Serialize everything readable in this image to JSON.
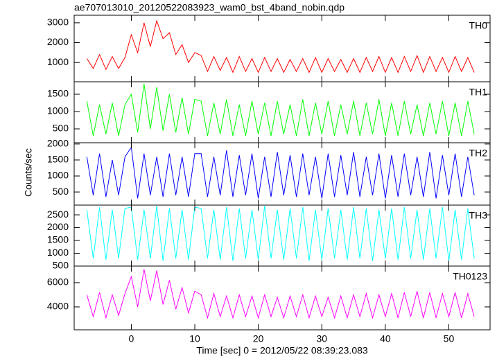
{
  "chart_data": {
    "type": "line",
    "title": "ae707013010_20120522083923_wam0_bst_4band_nobin.qdp",
    "xlabel": "Time [sec] 0 = 2012/05/22 08:39:23.083",
    "ylabel": "Counts/sec",
    "xlim": [
      -9,
      56.5
    ],
    "xticks": [
      0,
      10,
      20,
      30,
      40,
      50
    ],
    "x": [
      -7,
      -6,
      -5,
      -4,
      -3,
      -2,
      -1,
      0,
      1,
      2,
      3,
      4,
      5,
      6,
      7,
      8,
      9,
      10,
      11,
      12,
      13,
      14,
      15,
      16,
      17,
      18,
      19,
      20,
      21,
      22,
      23,
      24,
      25,
      26,
      27,
      28,
      29,
      30,
      31,
      32,
      33,
      34,
      35,
      36,
      37,
      38,
      39,
      40,
      41,
      42,
      43,
      44,
      45,
      46,
      47,
      48,
      49,
      50,
      51,
      52,
      53,
      54
    ],
    "series": [
      {
        "name": "TH0",
        "color": "#ff0000",
        "ylim": [
          30,
          3380
        ],
        "yticks": [
          1000,
          2000,
          3000
        ],
        "values": [
          1200,
          700,
          1400,
          650,
          1300,
          700,
          1250,
          2400,
          1500,
          3000,
          1800,
          3100,
          2200,
          2500,
          1400,
          1900,
          1000,
          1500,
          1350,
          550,
          1300,
          600,
          1250,
          500,
          1300,
          550,
          1200,
          500,
          1250,
          550,
          1200,
          500,
          1150,
          550,
          1200,
          500,
          1250,
          500,
          1200,
          550,
          1150,
          500,
          1200,
          500,
          1250,
          550,
          1300,
          500,
          1250,
          500,
          1300,
          550,
          1350,
          500,
          1300,
          550,
          1250,
          500,
          1300,
          550,
          1250,
          500
        ]
      },
      {
        "name": "TH1",
        "color": "#00ff00",
        "ylim": [
          100,
          1860
        ],
        "yticks": [
          500,
          1000,
          1500
        ],
        "values": [
          1300,
          300,
          1200,
          350,
          1250,
          300,
          1200,
          1500,
          400,
          1800,
          500,
          1700,
          450,
          1500,
          400,
          1400,
          350,
          1350,
          1300,
          300,
          1250,
          350,
          1350,
          300,
          1200,
          300,
          1300,
          350,
          1250,
          300,
          1300,
          350,
          1200,
          300,
          1350,
          300,
          1250,
          350,
          1300,
          300,
          1200,
          350,
          1300,
          300,
          1250,
          350,
          1350,
          300,
          1250,
          300,
          1300,
          350,
          1200,
          300,
          1250,
          350,
          1300,
          300,
          1250,
          300,
          1300,
          350
        ]
      },
      {
        "name": "TH2",
        "color": "#0000ff",
        "ylim": [
          90,
          2040
        ],
        "yticks": [
          500,
          1000,
          1500,
          2000
        ],
        "values": [
          1600,
          400,
          1700,
          350,
          1500,
          400,
          1600,
          1900,
          300,
          1700,
          400,
          1600,
          350,
          1700,
          400,
          1600,
          350,
          1700,
          1700,
          350,
          1600,
          400,
          1800,
          350,
          1650,
          400,
          1700,
          300,
          1600,
          350,
          1750,
          400,
          1650,
          350,
          1700,
          400,
          1600,
          300,
          1700,
          350,
          1650,
          400,
          1750,
          350,
          1600,
          400,
          1700,
          300,
          1650,
          350,
          1700,
          400,
          1600,
          350,
          1750,
          300,
          1650,
          400,
          1700,
          350,
          1600,
          400
        ]
      },
      {
        "name": "TH3",
        "color": "#00ffff",
        "ylim": [
          500,
          2880
        ],
        "yticks": [
          500,
          1000,
          1500,
          2000,
          2500
        ],
        "values": [
          2700,
          800,
          2800,
          750,
          2700,
          800,
          2750,
          2800,
          750,
          2700,
          800,
          2850,
          700,
          2750,
          800,
          2700,
          750,
          2800,
          2750,
          800,
          2700,
          750,
          2800,
          700,
          2750,
          800,
          2700,
          750,
          2850,
          800,
          2700,
          750,
          2750,
          800,
          2800,
          700,
          2700,
          750,
          2750,
          800,
          2700,
          750,
          2800,
          800,
          2750,
          700,
          2700,
          800,
          2750,
          750,
          2800,
          800,
          2700,
          750,
          2750,
          800,
          2800,
          700,
          2700,
          750,
          2750,
          800
        ]
      },
      {
        "name": "TH0123",
        "color": "#ff00ff",
        "ylim": [
          2110,
          7370
        ],
        "yticks": [
          4000,
          6000
        ],
        "values": [
          5000,
          3200,
          5200,
          3100,
          5000,
          3300,
          5100,
          6500,
          4000,
          7100,
          4500,
          7000,
          4200,
          6200,
          3800,
          5600,
          3500,
          5300,
          5000,
          3100,
          5100,
          3200,
          4900,
          3100,
          5000,
          3200,
          4900,
          3100,
          5000,
          3200,
          4800,
          3100,
          4900,
          3200,
          5000,
          3100,
          4900,
          3200,
          4800,
          3100,
          4900,
          3100,
          5000,
          3200,
          5100,
          3100,
          5000,
          3200,
          5100,
          3100,
          5200,
          3200,
          5300,
          3100,
          5200,
          3100,
          5100,
          3200,
          5200,
          3100,
          5100,
          3200
        ]
      }
    ]
  }
}
